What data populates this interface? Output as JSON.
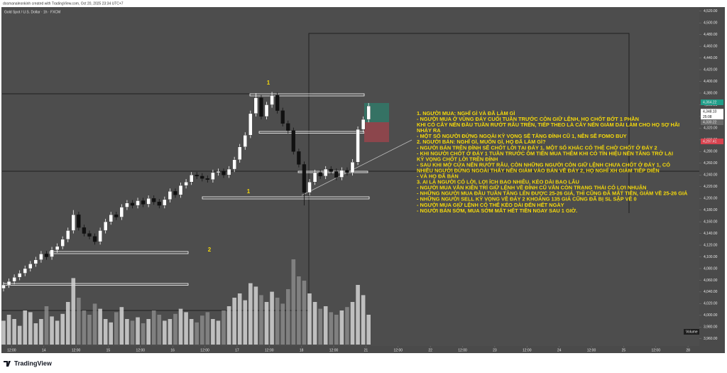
{
  "credit": "dosmanaleonkinh created with TradingView.com, Oct 20, 2025 23:34 UTC+7",
  "brand": "TradingView",
  "chart_data": {
    "type": "candlestick",
    "title": "Gold Spot / U.S. Dollar · 1h · FXCM",
    "x": [
      0,
      2,
      4,
      6,
      8,
      10,
      12,
      14,
      16,
      18,
      20,
      22,
      24,
      26,
      28,
      30,
      32,
      34,
      36,
      38,
      40,
      42,
      44,
      46,
      48,
      50,
      52,
      54,
      56,
      58,
      60,
      62,
      64,
      66,
      68,
      70,
      72,
      74,
      76,
      78,
      80,
      82,
      84,
      86,
      88,
      90,
      92,
      94,
      96,
      98,
      100,
      102,
      104,
      106,
      108,
      110,
      112,
      114,
      116,
      118,
      120,
      122,
      124,
      126,
      128,
      130,
      132,
      134,
      136
    ],
    "open": [
      4046,
      4052,
      4058,
      4065,
      4072,
      4080,
      4088,
      4095,
      4105,
      4100,
      4112,
      4118,
      4130,
      4145,
      4172,
      4150,
      4140,
      4135,
      4126,
      4145,
      4160,
      4172,
      4168,
      4185,
      4192,
      4188,
      4196,
      4190,
      4200,
      4194,
      4188,
      4198,
      4212,
      4206,
      4222,
      4228,
      4240,
      4238,
      4234,
      4232,
      4244,
      4246,
      4240,
      4250,
      4266,
      4288,
      4308,
      4345,
      4372,
      4340,
      4360,
      4376,
      4350,
      4328,
      4316,
      4280,
      4258,
      4210,
      4228,
      4244,
      4238,
      4250,
      4246,
      4236,
      4248,
      4244,
      4262,
      4318,
      4335
    ],
    "high": [
      4057,
      4063,
      4070,
      4077,
      4085,
      4093,
      4100,
      4110,
      4110,
      4117,
      4123,
      4135,
      4150,
      4180,
      4177,
      4155,
      4145,
      4140,
      4150,
      4165,
      4177,
      4177,
      4190,
      4197,
      4197,
      4201,
      4201,
      4205,
      4205,
      4199,
      4203,
      4217,
      4217,
      4227,
      4233,
      4245,
      4245,
      4243,
      4239,
      4249,
      4251,
      4251,
      4255,
      4271,
      4293,
      4313,
      4350,
      4380,
      4377,
      4365,
      4382,
      4381,
      4355,
      4333,
      4321,
      4285,
      4263,
      4233,
      4249,
      4249,
      4255,
      4255,
      4251,
      4253,
      4253,
      4267,
      4323,
      4340,
      4363
    ],
    "low": [
      4041,
      4047,
      4053,
      4060,
      4067,
      4075,
      4083,
      4090,
      4095,
      4095,
      4107,
      4113,
      4125,
      4140,
      4145,
      4135,
      4130,
      4121,
      4121,
      4140,
      4155,
      4163,
      4163,
      4180,
      4183,
      4183,
      4185,
      4185,
      4189,
      4183,
      4183,
      4193,
      4201,
      4201,
      4217,
      4223,
      4233,
      4229,
      4227,
      4227,
      4239,
      4235,
      4235,
      4245,
      4261,
      4283,
      4303,
      4340,
      4335,
      4335,
      4355,
      4345,
      4323,
      4311,
      4275,
      4253,
      4188,
      4205,
      4223,
      4233,
      4233,
      4241,
      4231,
      4231,
      4239,
      4239,
      4257,
      4313,
      4330
    ],
    "close": [
      4052,
      4058,
      4065,
      4072,
      4080,
      4088,
      4095,
      4105,
      4100,
      4112,
      4118,
      4130,
      4145,
      4172,
      4150,
      4140,
      4135,
      4126,
      4145,
      4160,
      4172,
      4168,
      4185,
      4192,
      4188,
      4196,
      4190,
      4200,
      4194,
      4188,
      4198,
      4212,
      4206,
      4222,
      4228,
      4240,
      4238,
      4234,
      4232,
      4244,
      4246,
      4240,
      4250,
      4266,
      4288,
      4308,
      4345,
      4372,
      4340,
      4360,
      4376,
      4350,
      4328,
      4316,
      4280,
      4258,
      4210,
      4228,
      4244,
      4238,
      4250,
      4246,
      4236,
      4248,
      4244,
      4262,
      4318,
      4335,
      4358
    ],
    "volume": [
      28,
      35,
      30,
      22,
      40,
      38,
      25,
      30,
      45,
      33,
      28,
      36,
      50,
      78,
      55,
      40,
      35,
      48,
      42,
      30,
      26,
      38,
      44,
      30,
      28,
      32,
      25,
      30,
      40,
      35,
      28,
      30,
      36,
      42,
      38,
      30,
      26,
      34,
      38,
      30,
      28,
      40,
      45,
      55,
      60,
      52,
      72,
      68,
      58,
      50,
      62,
      55,
      48,
      65,
      100,
      80,
      75,
      60,
      50,
      42,
      45,
      38,
      35,
      40,
      44,
      50,
      70,
      58,
      35
    ],
    "volume_ylim": [
      0,
      100
    ],
    "volume_label": "Volume",
    "up_color": "#ffffff",
    "down_color": "#111111",
    "volume_colors": [
      "#d4d4d4",
      "#8a8a8a"
    ],
    "xlim": [
      0,
      260
    ],
    "xticks": [
      {
        "value": 3,
        "label": "12:00"
      },
      {
        "value": 15,
        "label": "14"
      },
      {
        "value": 27,
        "label": "12:00"
      },
      {
        "value": 39,
        "label": "15"
      },
      {
        "value": 51,
        "label": "12:00"
      },
      {
        "value": 63,
        "label": "16"
      },
      {
        "value": 75,
        "label": "12:00"
      },
      {
        "value": 87,
        "label": "17"
      },
      {
        "value": 99,
        "label": "12:00"
      },
      {
        "value": 111,
        "label": "18"
      },
      {
        "value": 123,
        "label": "12:00"
      },
      {
        "value": 135,
        "label": "21"
      },
      {
        "value": 147,
        "label": "12:00"
      },
      {
        "value": 159,
        "label": "22"
      },
      {
        "value": 171,
        "label": "12:00"
      },
      {
        "value": 183,
        "label": "23"
      },
      {
        "value": 195,
        "label": "12:00"
      },
      {
        "value": 207,
        "label": "24"
      },
      {
        "value": 219,
        "label": "12:00"
      },
      {
        "value": 231,
        "label": "25"
      },
      {
        "value": 243,
        "label": "12:00"
      },
      {
        "value": 255,
        "label": "28"
      }
    ],
    "ylim": [
      3950,
      4527
    ],
    "yticks": [
      {
        "value": 3960,
        "label": "3,960.00"
      },
      {
        "value": 3980,
        "label": "3,980.00"
      },
      {
        "value": 4000,
        "label": "4,000.00"
      },
      {
        "value": 4020,
        "label": "4,020.00"
      },
      {
        "value": 4040,
        "label": "4,040.00"
      },
      {
        "value": 4060,
        "label": "4,060.00"
      },
      {
        "value": 4080,
        "label": "4,080.00"
      },
      {
        "value": 4100,
        "label": "4,100.00"
      },
      {
        "value": 4120,
        "label": "4,120.00"
      },
      {
        "value": 4140,
        "label": "4,140.00"
      },
      {
        "value": 4160,
        "label": "4,160.00"
      },
      {
        "value": 4180,
        "label": "4,180.00"
      },
      {
        "value": 4200,
        "label": "4,200.00"
      },
      {
        "value": 4220,
        "label": "4,220.00"
      },
      {
        "value": 4240,
        "label": "4,240.00"
      },
      {
        "value": 4260,
        "label": "4,260.00"
      },
      {
        "value": 4280,
        "label": "4,280.00"
      },
      {
        "value": 4300,
        "label": "4,300.00"
      },
      {
        "value": 4320,
        "label": "4,320.00"
      },
      {
        "value": 4340,
        "label": "4,340.00"
      },
      {
        "value": 4360,
        "label": "4,360.00"
      },
      {
        "value": 4380,
        "label": "4,380.00"
      },
      {
        "value": 4400,
        "label": "4,400.00"
      },
      {
        "value": 4420,
        "label": "4,420.00"
      },
      {
        "value": 4440,
        "label": "4,440.00"
      },
      {
        "value": 4460,
        "label": "4,460.00"
      },
      {
        "value": 4480,
        "label": "4,480.00"
      },
      {
        "value": 4500,
        "label": "4,500.00"
      },
      {
        "value": 4520,
        "label": "4,520.00"
      }
    ],
    "price_labels": [
      {
        "value": 4364.22,
        "label": "4,364.22",
        "color": "#1f9e89"
      },
      {
        "value": 4348.1,
        "label": "4,348.10",
        "color": "#ffffff"
      },
      {
        "value": 4330.22,
        "label": "4,330.22",
        "color": "#6a6a6a"
      },
      {
        "value": 4297.41,
        "label": "4,297.41",
        "color": "#d9434f"
      }
    ],
    "countdown": "25:08",
    "annotations": [
      "1",
      "1",
      "2"
    ],
    "notes": [
      "1. NGƯỜI MUA: NGHĨ GÌ VÀ ĐÃ LÀM GÌ",
      "- NGƯỜI MUA Ở VÙNG ĐÁY CUỐI TUẦN TRƯỚC CÒN GIỮ LỆNH, HỌ CHỐT BỚT 1 PHẦN",
      "KHI CÓ CÂY NẾN ĐẦU TUẦN RƯỚT RÂU TRÊN, TIẾP THEO LÀ CÂY NẾN GIẢM DÀI LÀM CHO HỌ SỢ HÃI",
      "NHẢY RA",
      "- MỘT SỐ NGƯỜI ĐỨNG NGOÀI KỲ VỌNG SẼ TĂNG ĐỈNH CŨ 1, NÊN SẼ FOMO BUY",
      "2. NGƯỜI BÁN: NGHĨ GÌ, MUỐN GÌ, HỌ ĐÃ LÀM GÌ?",
      "- NGƯỜI BÁN TRÊN ĐỈNH SẼ CHỐT LỜI TẠI ĐÁY 1, MỘT SỐ KHÁC CÓ THỂ CHỜ CHỐT Ở ĐÁY 2",
      "- KHI NGƯỜI CHỐT Ở ĐÁY 1 TUẦN TRƯỚC ÔM TIỀN MUA THÊM KHI CÓ TÍN HIỆU NẾN TĂNG TRỞ LẠI",
      "KỲ VỌNG CHỐT LỜI TRÊN ĐỈNH",
      "- SAU KHI MỞ CỬA NẾN RƯỚT RÂU, CÒN NHỮNG NGƯỜI CÒN GIỮ LỆNH CHƯA CHỐT Ở ĐÁY 1, CÓ",
      "NHIỀU NGƯỜI ĐỨNG NGOÀI THẤY NẾN GIẢM VÀO BÁN VỀ ĐÁY 2, HỌ NGHĨ XH GIẢM TIẾP DIỄN",
      "- VÀ HỌ ĐÃ BÁN",
      "3. AI LÀ NGƯỜI CÓ LỜI, LỢI ÍCH BAO NHIÊU, KÉO DÀI BAO LÂU",
      "- NGƯỜI MUA VẪN KIÊN TRÌ GIỮ LỆNH VỀ ĐỈNH CŨ VẪN CÒN TRẠNG THÁI CÓ LỢI NHUẬN",
      "- NHỮNG NGƯỜI MUA ĐẦU TUẦN TĂNG LÊN ĐƯỢC 25-26 GIÁ, THÌ CŨNG ĐÃ MẤT TIỀN, GIẢM VỀ 25-26 GIÁ",
      "- NHỮNG NGƯỜI SELL KỲ VỌNG VỀ ĐÁY 2 KHOẢNG 135 GIÁ CŨNG ĐÃ BỊ SL SẬP VỀ 0",
      "- NGƯỜI MUA GIỮ LỆNH CÓ THỂ KÉO DÀI ĐẾN HẾT NGÀY",
      "- NGƯỜI BÁN SỚM, MUA SỚM MẤT HẾT TIỀN NGAY SAU 1 GIỜ."
    ]
  }
}
